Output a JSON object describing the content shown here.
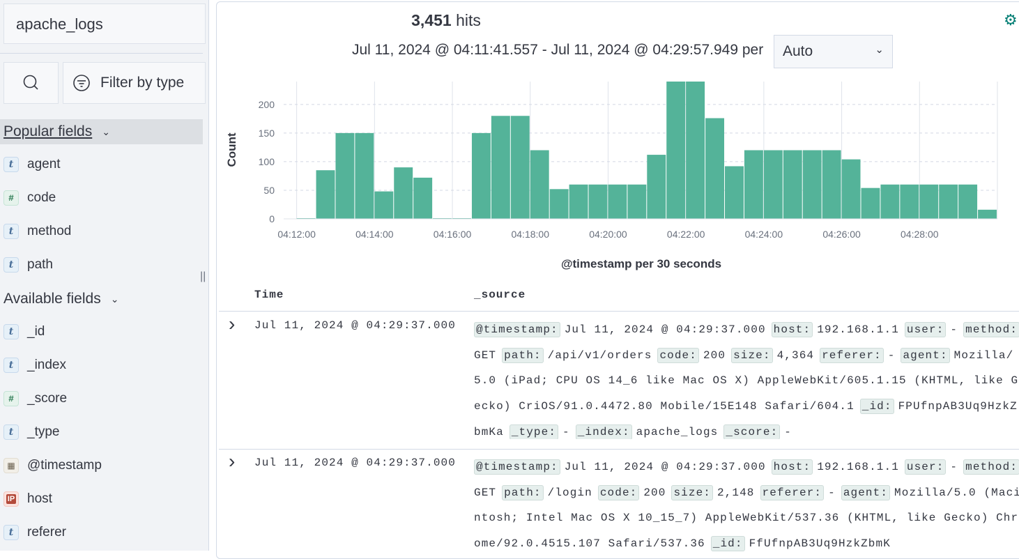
{
  "sidebar": {
    "index_pattern": "apache_logs",
    "filter_label": "Filter by type",
    "popular_title": "Popular fields",
    "available_title": "Available fields",
    "popular": [
      {
        "name": "agent",
        "type": "t"
      },
      {
        "name": "code",
        "type": "#"
      },
      {
        "name": "method",
        "type": "t"
      },
      {
        "name": "path",
        "type": "t"
      }
    ],
    "available": [
      {
        "name": "_id",
        "type": "t"
      },
      {
        "name": "_index",
        "type": "t"
      },
      {
        "name": "_score",
        "type": "#"
      },
      {
        "name": "_type",
        "type": "t"
      },
      {
        "name": "@timestamp",
        "type": "date"
      },
      {
        "name": "host",
        "type": "IP"
      },
      {
        "name": "referer",
        "type": "t"
      }
    ]
  },
  "header": {
    "hits_count": "3,451",
    "hits_label": "hits",
    "range": "Jul 11, 2024 @ 04:11:41.557 - Jul 11, 2024 @ 04:29:57.949 per",
    "interval": "Auto"
  },
  "chart_data": {
    "type": "bar",
    "title": "",
    "xlabel": "@timestamp per 30 seconds",
    "ylabel": "Count",
    "ylim": [
      0,
      240
    ],
    "yticks": [
      0,
      50,
      100,
      150,
      200
    ],
    "xticks": [
      "04:12:00",
      "04:14:00",
      "04:16:00",
      "04:18:00",
      "04:20:00",
      "04:22:00",
      "04:24:00",
      "04:26:00",
      "04:28:00"
    ],
    "x_range": [
      "04:11:40",
      "04:30:00"
    ],
    "bucket_seconds": 30,
    "categories": [
      "04:12:00",
      "04:12:30",
      "04:13:00",
      "04:13:30",
      "04:14:00",
      "04:14:30",
      "04:15:00",
      "04:15:30",
      "04:16:00",
      "04:16:30",
      "04:17:00",
      "04:17:30",
      "04:18:00",
      "04:18:30",
      "04:19:00",
      "04:19:30",
      "04:20:00",
      "04:20:30",
      "04:21:00",
      "04:21:30",
      "04:22:00",
      "04:22:30",
      "04:23:00",
      "04:23:30",
      "04:24:00",
      "04:24:30",
      "04:25:00",
      "04:25:30",
      "04:26:00",
      "04:26:30",
      "04:27:00",
      "04:27:30",
      "04:28:00",
      "04:28:30",
      "04:29:00",
      "04:29:30"
    ],
    "values": [
      0,
      85,
      150,
      150,
      48,
      90,
      72,
      0,
      0,
      150,
      180,
      180,
      120,
      52,
      60,
      60,
      60,
      60,
      112,
      240,
      240,
      176,
      92,
      120,
      120,
      120,
      120,
      120,
      104,
      54,
      60,
      60,
      60,
      60,
      60,
      16
    ],
    "color": "#54b399"
  },
  "table": {
    "col_time": "Time",
    "col_source": "_source",
    "rows": [
      {
        "time": "Jul 11, 2024 @ 04:29:37.000",
        "fields": [
          [
            "@timestamp:",
            "Jul 11, 2024 @ 04:29:37.000"
          ],
          [
            "host:",
            "192.168.1.1"
          ],
          [
            "user:",
            "-"
          ],
          [
            "method:",
            "GET"
          ],
          [
            "path:",
            "/api/v1/orders"
          ],
          [
            "code:",
            "200"
          ],
          [
            "size:",
            "4,364"
          ],
          [
            "referer:",
            "-"
          ],
          [
            "agent:",
            "Mozilla/5.0 (iPad; CPU OS 14_6 like Mac OS X) AppleWebKit/605.1.15 (KHTML, like Gecko) CriOS/91.0.4472.80 Mobile/15E148 Safari/604.1"
          ],
          [
            "_id:",
            "FPUfnpAB3Uq9HzkZbmKa"
          ],
          [
            "_type:",
            "-"
          ],
          [
            "_index:",
            "apache_logs"
          ],
          [
            "_score:",
            "-"
          ]
        ]
      },
      {
        "time": "Jul 11, 2024 @ 04:29:37.000",
        "fields": [
          [
            "@timestamp:",
            "Jul 11, 2024 @ 04:29:37.000"
          ],
          [
            "host:",
            "192.168.1.1"
          ],
          [
            "user:",
            "-"
          ],
          [
            "method:",
            "GET"
          ],
          [
            "path:",
            "/login"
          ],
          [
            "code:",
            "200"
          ],
          [
            "size:",
            "2,148"
          ],
          [
            "referer:",
            "-"
          ],
          [
            "agent:",
            "Mozilla/5.0 (Macintosh; Intel Mac OS X 10_15_7) AppleWebKit/537.36 (KHTML, like Gecko) Chrome/92.0.4515.107 Safari/537.36"
          ],
          [
            "_id:",
            "FfUfnpAB3Uq9HzkZbmK"
          ]
        ]
      }
    ]
  }
}
